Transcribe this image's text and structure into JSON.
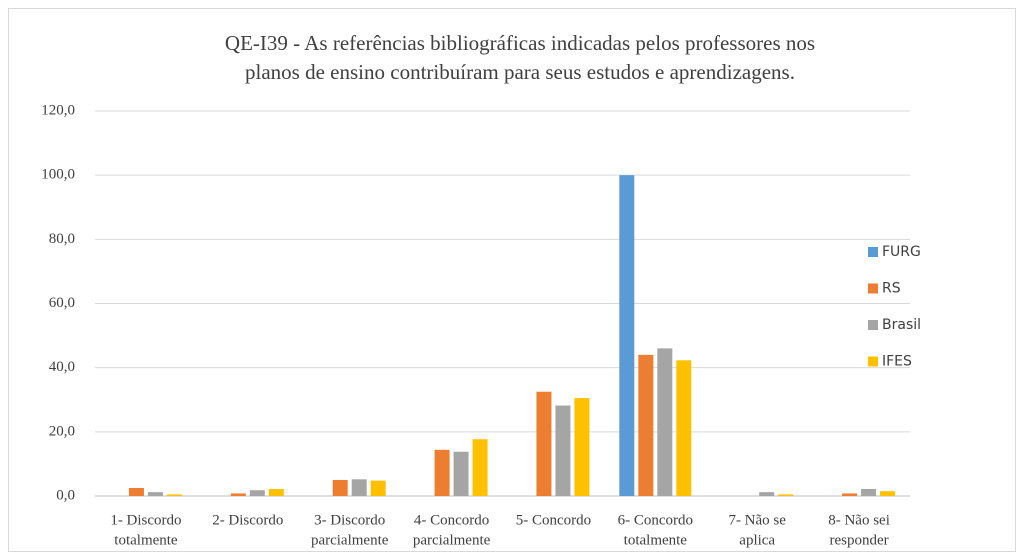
{
  "chart_data": {
    "type": "bar",
    "title": [
      "QE-I39 - As referências bibliográficas indicadas pelos professores nos",
      "planos de ensino contribuíram para seus estudos e aprendizagens."
    ],
    "categories": [
      [
        "1- Discordo",
        "totalmente"
      ],
      [
        "2- Discordo"
      ],
      [
        "3- Discordo",
        "parcialmente"
      ],
      [
        "4- Concordo",
        "parcialmente"
      ],
      [
        "5- Concordo"
      ],
      [
        "6- Concordo",
        "totalmente"
      ],
      [
        "7- Não se",
        "aplica"
      ],
      [
        "8- Não sei",
        "responder"
      ]
    ],
    "series": [
      {
        "name": "FURG",
        "color": "#5b9bd5",
        "values": [
          0,
          0,
          0,
          0,
          0,
          100,
          0,
          0
        ]
      },
      {
        "name": "RS",
        "color": "#ed7d31",
        "values": [
          2.5,
          0.8,
          5,
          14.4,
          32.5,
          44,
          0,
          0.8
        ]
      },
      {
        "name": "Brasil",
        "color": "#a5a5a5",
        "values": [
          1.2,
          1.8,
          5.2,
          13.8,
          28.2,
          46,
          1.2,
          2.2
        ]
      },
      {
        "name": "IFES",
        "color": "#ffc000",
        "values": [
          0.5,
          2.2,
          4.8,
          17.7,
          30.5,
          42.3,
          0.5,
          1.5
        ]
      }
    ],
    "ylim": [
      0,
      120
    ],
    "yticks": [
      {
        "value": 0,
        "label": "0,0"
      },
      {
        "value": 20,
        "label": "20,0"
      },
      {
        "value": 40,
        "label": "40,0"
      },
      {
        "value": 60,
        "label": "60,0"
      },
      {
        "value": 80,
        "label": "80,0"
      },
      {
        "value": 100,
        "label": "100,0"
      },
      {
        "value": 120,
        "label": "120,0"
      }
    ],
    "grid": true,
    "legend": "right"
  }
}
